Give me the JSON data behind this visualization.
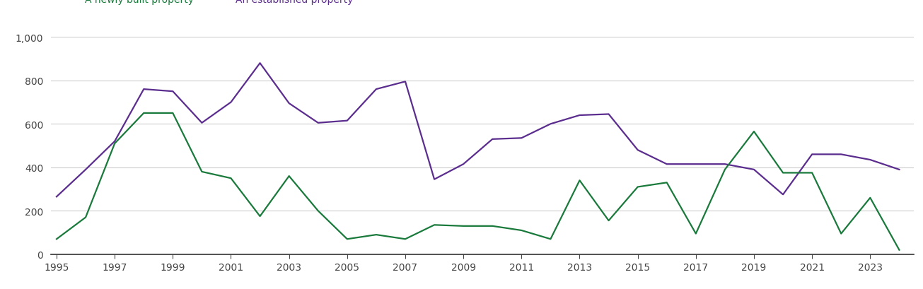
{
  "years": [
    1995,
    1996,
    1997,
    1998,
    1999,
    2000,
    2001,
    2002,
    2003,
    2004,
    2005,
    2006,
    2007,
    2008,
    2009,
    2010,
    2011,
    2012,
    2013,
    2014,
    2015,
    2016,
    2017,
    2018,
    2019,
    2020,
    2021,
    2022,
    2023,
    2024
  ],
  "new_build": [
    70,
    170,
    510,
    650,
    650,
    380,
    350,
    175,
    360,
    200,
    70,
    90,
    70,
    135,
    130,
    130,
    110,
    70,
    340,
    155,
    310,
    330,
    95,
    390,
    565,
    375,
    375,
    95,
    260,
    20
  ],
  "established": [
    265,
    390,
    520,
    760,
    750,
    605,
    700,
    880,
    695,
    605,
    615,
    760,
    795,
    345,
    415,
    530,
    535,
    600,
    640,
    645,
    480,
    415,
    415,
    415,
    390,
    275,
    460,
    460,
    435,
    390
  ],
  "new_build_color": "#1a7a3c",
  "established_color": "#5b2d8e",
  "background_color": "#ffffff",
  "grid_color": "#cccccc",
  "ylim": [
    0,
    1000
  ],
  "yticks": [
    0,
    200,
    400,
    600,
    800,
    1000
  ],
  "ytick_labels": [
    "0",
    "200",
    "400",
    "600",
    "800",
    "1,000"
  ],
  "xtick_labels": [
    "1995",
    "1997",
    "1999",
    "2001",
    "2003",
    "2005",
    "2007",
    "2009",
    "2011",
    "2013",
    "2015",
    "2017",
    "2019",
    "2021",
    "2023"
  ],
  "xlabel_ticks": [
    1995,
    1997,
    1999,
    2001,
    2003,
    2005,
    2007,
    2009,
    2011,
    2013,
    2015,
    2017,
    2019,
    2021,
    2023
  ],
  "line_width": 1.6,
  "xlim_left": 1995,
  "xlim_right": 2024
}
